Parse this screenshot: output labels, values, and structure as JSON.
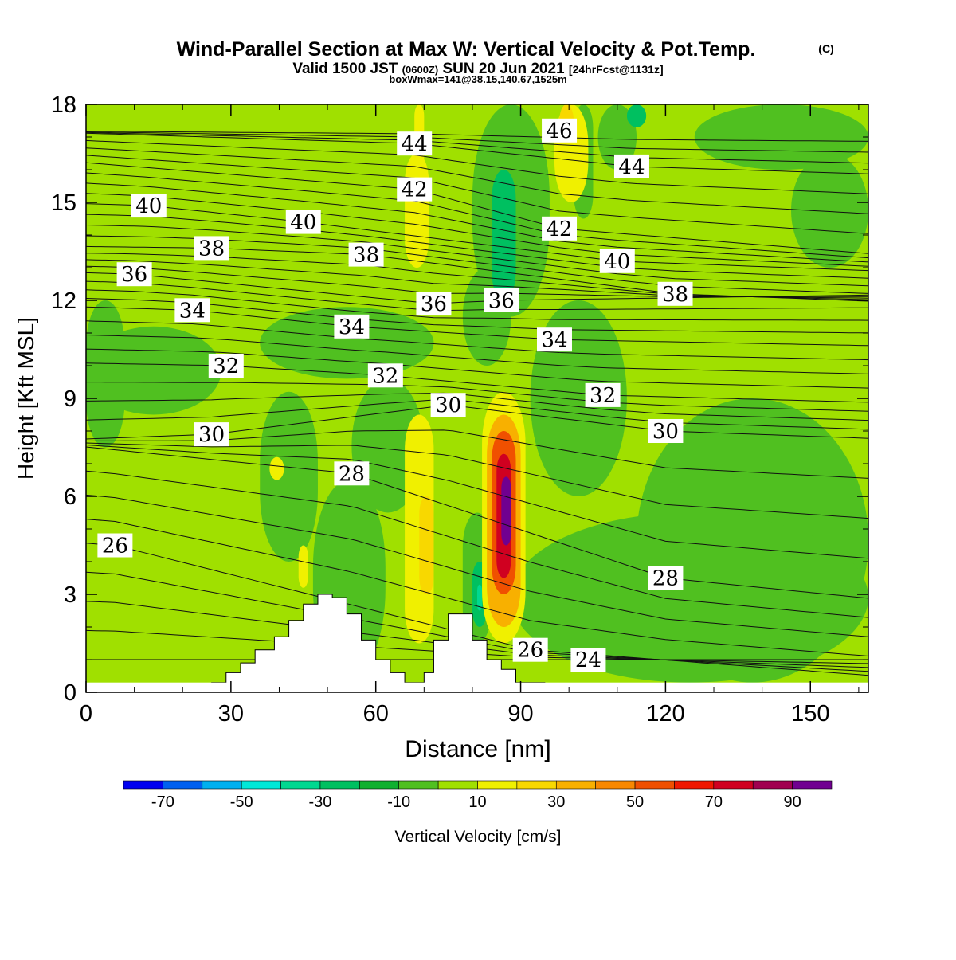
{
  "header": {
    "title": "Wind-Parallel Section at Max W: Vertical Velocity & Pot.Temp.",
    "title_mark": "(C)",
    "valid_prefix": "Valid 1500 JST",
    "valid_utc": "(0600Z)",
    "valid_date": "SUN 20 Jun 2021",
    "forecast": "[24hrFcst@1131z]",
    "box_info": "boxWmax=141@38.15,140.67,1525m"
  },
  "chart_data": {
    "type": "heatmap",
    "xlabel": "Distance [nm]",
    "ylabel": "Height [Kft MSL]",
    "xlim": [
      0,
      162
    ],
    "ylim": [
      0,
      18
    ],
    "x_ticks": [
      "0",
      "30",
      "60",
      "90",
      "120",
      "150"
    ],
    "y_ticks": [
      "0",
      "3",
      "6",
      "9",
      "12",
      "15",
      "18"
    ],
    "grid": false,
    "colorbar": {
      "label": "Vertical Velocity [cm/s]",
      "tick_labels": [
        "-70",
        "-50",
        "-30",
        "-10",
        "10",
        "30",
        "50",
        "70",
        "90"
      ],
      "bins": [
        -80,
        -70,
        -60,
        -50,
        -40,
        -30,
        -20,
        -10,
        0,
        10,
        20,
        30,
        40,
        50,
        60,
        70,
        80,
        90,
        100
      ],
      "colors": [
        "#0000f0",
        "#0060f0",
        "#00b0f0",
        "#00e8d8",
        "#00d890",
        "#00c060",
        "#10b030",
        "#50c020",
        "#a0e000",
        "#f0f000",
        "#f8d800",
        "#f8b000",
        "#f88800",
        "#f05000",
        "#f01800",
        "#d00020",
        "#a00050",
        "#700090"
      ]
    },
    "background_velocity": 5,
    "velocity_regions": [
      {
        "x": [
          0,
          28
        ],
        "z": [
          8.5,
          11.2
        ],
        "w": -5
      },
      {
        "x": [
          0,
          8
        ],
        "z": [
          7.5,
          12
        ],
        "w": -5
      },
      {
        "x": [
          36,
          72
        ],
        "z": [
          9.6,
          11.8
        ],
        "w": -5
      },
      {
        "x": [
          36,
          48
        ],
        "z": [
          4,
          9.2
        ],
        "w": -5
      },
      {
        "x": [
          55,
          70
        ],
        "z": [
          5.5,
          9.6
        ],
        "w": -5
      },
      {
        "x": [
          78,
          88
        ],
        "z": [
          10,
          13
        ],
        "w": -5
      },
      {
        "x": [
          80,
          96
        ],
        "z": [
          11.5,
          18
        ],
        "w": -5
      },
      {
        "x": [
          84,
          89
        ],
        "z": [
          12,
          16
        ],
        "w": -25
      },
      {
        "x": [
          101,
          105
        ],
        "z": [
          14.5,
          18
        ],
        "w": -5
      },
      {
        "x": [
          106,
          114
        ],
        "z": [
          16,
          18
        ],
        "w": -5
      },
      {
        "x": [
          112,
          116
        ],
        "z": [
          17.3,
          18
        ],
        "w": -25
      },
      {
        "x": [
          126,
          162
        ],
        "z": [
          16,
          18
        ],
        "w": -5
      },
      {
        "x": [
          146,
          162
        ],
        "z": [
          13,
          16.5
        ],
        "w": -5
      },
      {
        "x": [
          114,
          162
        ],
        "z": [
          0.3,
          9
        ],
        "w": -5
      },
      {
        "x": [
          88,
          162
        ],
        "z": [
          0.3,
          5.5
        ],
        "w": -5
      },
      {
        "x": [
          92,
          112
        ],
        "z": [
          6,
          12
        ],
        "w": -5
      },
      {
        "x": [
          50,
          58
        ],
        "z": [
          0.8,
          5.8
        ],
        "w": -25
      },
      {
        "x": [
          47,
          62
        ],
        "z": [
          0.5,
          6.5
        ],
        "w": -5
      },
      {
        "x": [
          78,
          84
        ],
        "z": [
          1.5,
          5.5
        ],
        "w": -5
      },
      {
        "x": [
          80,
          83
        ],
        "z": [
          2,
          4
        ],
        "w": -25
      },
      {
        "x": [
          81,
          82
        ],
        "z": [
          2.5,
          3.3
        ],
        "w": -35
      },
      {
        "x": [
          66,
          72
        ],
        "z": [
          1.5,
          8.5
        ],
        "w": 15
      },
      {
        "x": [
          69,
          72
        ],
        "z": [
          3,
          6
        ],
        "w": 25
      },
      {
        "x": [
          68,
          70
        ],
        "z": [
          16,
          18
        ],
        "w": 15
      },
      {
        "x": [
          66,
          71
        ],
        "z": [
          13,
          16.5
        ],
        "w": 15
      },
      {
        "x": [
          97,
          104
        ],
        "z": [
          15,
          18
        ],
        "w": 15
      },
      {
        "x": [
          98,
          101
        ],
        "z": [
          16.8,
          18
        ],
        "w": 25
      },
      {
        "x": [
          38,
          41
        ],
        "z": [
          6.5,
          7.2
        ],
        "w": 15
      },
      {
        "x": [
          44,
          46
        ],
        "z": [
          3.2,
          4.5
        ],
        "w": 15
      },
      {
        "x": [
          82,
          91
        ],
        "z": [
          1.5,
          9.2
        ],
        "w": 15
      },
      {
        "x": [
          83,
          90
        ],
        "z": [
          2,
          8.5
        ],
        "w": 35
      },
      {
        "x": [
          84,
          89
        ],
        "z": [
          3,
          8
        ],
        "w": 55
      },
      {
        "x": [
          85,
          88
        ],
        "z": [
          3.5,
          7.3
        ],
        "w": 75
      },
      {
        "x": [
          86,
          88
        ],
        "z": [
          4.5,
          6.6
        ],
        "w": 95
      }
    ],
    "theta_contours": [
      {
        "label": "24",
        "label_pos": [
          104,
          1.0
        ]
      },
      {
        "label": "26",
        "label_pos": [
          6,
          4.5
        ]
      },
      {
        "label": "26",
        "label_pos": [
          92,
          1.3
        ]
      },
      {
        "label": "28",
        "label_pos": [
          55,
          6.7
        ]
      },
      {
        "label": "28",
        "label_pos": [
          120,
          3.5
        ]
      },
      {
        "label": "30",
        "label_pos": [
          26,
          7.9
        ]
      },
      {
        "label": "30",
        "label_pos": [
          75,
          8.8
        ]
      },
      {
        "label": "30",
        "label_pos": [
          120,
          8.0
        ]
      },
      {
        "label": "32",
        "label_pos": [
          29,
          10.0
        ]
      },
      {
        "label": "32",
        "label_pos": [
          62,
          9.7
        ]
      },
      {
        "label": "32",
        "label_pos": [
          107,
          9.1
        ]
      },
      {
        "label": "34",
        "label_pos": [
          22,
          11.7
        ]
      },
      {
        "label": "34",
        "label_pos": [
          55,
          11.2
        ]
      },
      {
        "label": "34",
        "label_pos": [
          97,
          10.8
        ]
      },
      {
        "label": "36",
        "label_pos": [
          10,
          12.8
        ]
      },
      {
        "label": "36",
        "label_pos": [
          72,
          11.9
        ]
      },
      {
        "label": "36",
        "label_pos": [
          86,
          12.0
        ]
      },
      {
        "label": "38",
        "label_pos": [
          26,
          13.6
        ]
      },
      {
        "label": "38",
        "label_pos": [
          58,
          13.4
        ]
      },
      {
        "label": "38",
        "label_pos": [
          122,
          12.2
        ]
      },
      {
        "label": "40",
        "label_pos": [
          13,
          14.9
        ]
      },
      {
        "label": "40",
        "label_pos": [
          45,
          14.4
        ]
      },
      {
        "label": "40",
        "label_pos": [
          110,
          13.2
        ]
      },
      {
        "label": "42",
        "label_pos": [
          68,
          15.4
        ]
      },
      {
        "label": "42",
        "label_pos": [
          98,
          14.2
        ]
      },
      {
        "label": "44",
        "label_pos": [
          68,
          16.8
        ]
      },
      {
        "label": "44",
        "label_pos": [
          113,
          16.1
        ]
      },
      {
        "label": "46",
        "label_pos": [
          98,
          17.2
        ]
      }
    ],
    "terrain": [
      [
        25,
        0
      ],
      [
        26,
        0.3
      ],
      [
        29,
        0.3
      ],
      [
        29,
        0.6
      ],
      [
        32,
        0.6
      ],
      [
        32,
        0.9
      ],
      [
        35,
        0.9
      ],
      [
        35,
        1.3
      ],
      [
        39,
        1.3
      ],
      [
        39,
        1.7
      ],
      [
        42,
        1.7
      ],
      [
        42,
        2.2
      ],
      [
        45,
        2.2
      ],
      [
        45,
        2.7
      ],
      [
        48,
        2.7
      ],
      [
        48,
        3.0
      ],
      [
        51,
        3.0
      ],
      [
        51,
        2.9
      ],
      [
        54,
        2.9
      ],
      [
        54,
        2.4
      ],
      [
        57,
        2.4
      ],
      [
        57,
        1.6
      ],
      [
        60,
        1.6
      ],
      [
        60,
        1.0
      ],
      [
        63,
        1.0
      ],
      [
        63,
        0.6
      ],
      [
        66,
        0.6
      ],
      [
        66,
        0.3
      ],
      [
        70,
        0.3
      ],
      [
        70,
        0.6
      ],
      [
        72,
        0.6
      ],
      [
        72,
        1.6
      ],
      [
        75,
        1.6
      ],
      [
        75,
        2.4
      ],
      [
        80,
        2.4
      ],
      [
        80,
        1.6
      ],
      [
        83,
        1.6
      ],
      [
        83,
        1.0
      ],
      [
        86,
        1.0
      ],
      [
        86,
        0.7
      ],
      [
        89,
        0.7
      ],
      [
        89,
        0.3
      ],
      [
        95,
        0.3
      ],
      [
        95,
        0
      ]
    ]
  }
}
